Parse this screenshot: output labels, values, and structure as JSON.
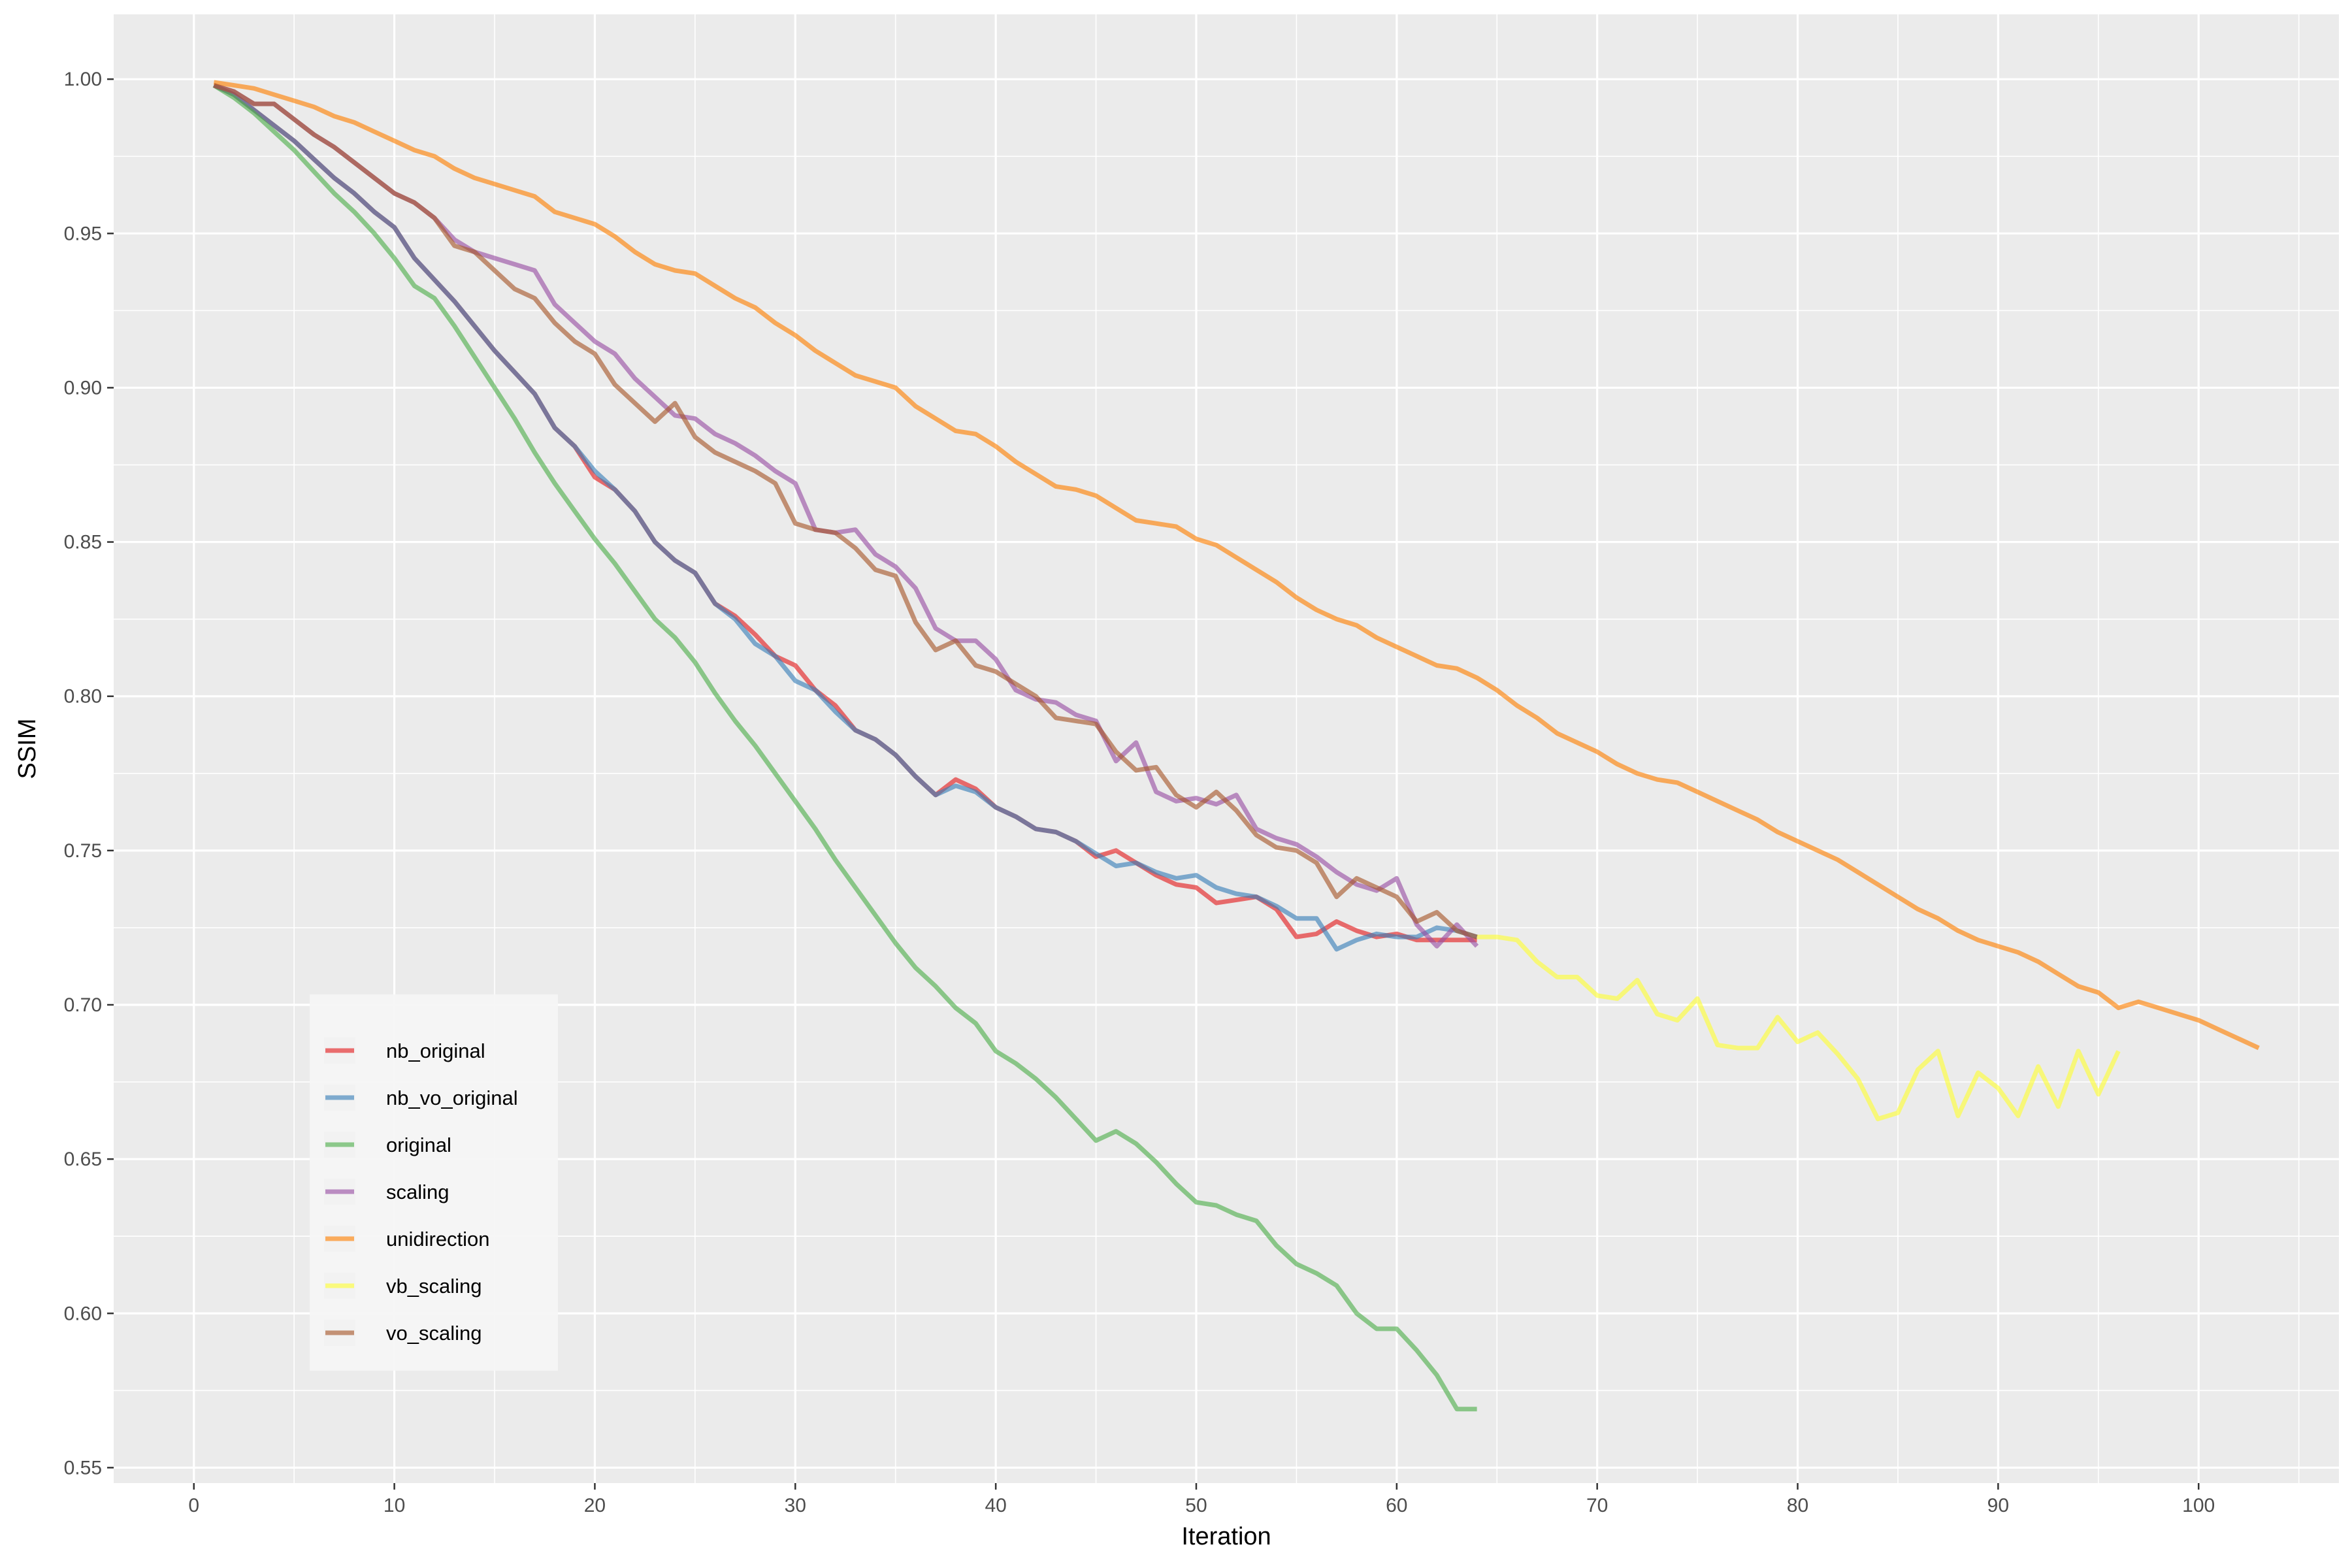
{
  "chart_data": {
    "type": "line",
    "title": "",
    "xlabel": "Iteration",
    "ylabel": "SSIM",
    "xlim": [
      -4,
      107
    ],
    "ylim": [
      0.545,
      1.021
    ],
    "xticks": [
      "0",
      "10",
      "20",
      "30",
      "40",
      "50",
      "60",
      "70",
      "80",
      "90",
      "100"
    ],
    "yticks": [
      "0.55",
      "0.60",
      "0.65",
      "0.70",
      "0.75",
      "0.80",
      "0.85",
      "0.90",
      "0.95",
      "1.00"
    ],
    "grid": true,
    "legend_position": "bottom-left",
    "series": [
      {
        "name": "nb_original",
        "color": "#e41a1c",
        "x": [
          1,
          2,
          3,
          4,
          5,
          6,
          7,
          8,
          9,
          10,
          11,
          12,
          13,
          14,
          15,
          16,
          17,
          18,
          19,
          20,
          21,
          22,
          23,
          24,
          25,
          26,
          27,
          28,
          29,
          30,
          31,
          32,
          33,
          34,
          35,
          36,
          37,
          38,
          39,
          40,
          41,
          42,
          43,
          44,
          45,
          46,
          47,
          48,
          49,
          50,
          51,
          52,
          53,
          54,
          55,
          56,
          57,
          58,
          59,
          60,
          61,
          62,
          63,
          64
        ],
        "y": [
          0.998,
          0.995,
          0.99,
          0.985,
          0.98,
          0.974,
          0.968,
          0.963,
          0.957,
          0.952,
          0.942,
          0.935,
          0.928,
          0.92,
          0.912,
          0.905,
          0.898,
          0.887,
          0.881,
          0.871,
          0.867,
          0.86,
          0.85,
          0.844,
          0.84,
          0.83,
          0.826,
          0.82,
          0.813,
          0.81,
          0.802,
          0.797,
          0.789,
          0.786,
          0.781,
          0.774,
          0.768,
          0.773,
          0.77,
          0.764,
          0.761,
          0.757,
          0.756,
          0.753,
          0.748,
          0.75,
          0.746,
          0.742,
          0.739,
          0.738,
          0.733,
          0.734,
          0.735,
          0.731,
          0.722,
          0.723,
          0.727,
          0.724,
          0.722,
          0.723,
          0.721,
          0.721,
          0.721,
          0.721
        ]
      },
      {
        "name": "nb_vo_original",
        "color": "#377eb8",
        "x": [
          1,
          2,
          3,
          4,
          5,
          6,
          7,
          8,
          9,
          10,
          11,
          12,
          13,
          14,
          15,
          16,
          17,
          18,
          19,
          20,
          21,
          22,
          23,
          24,
          25,
          26,
          27,
          28,
          29,
          30,
          31,
          32,
          33,
          34,
          35,
          36,
          37,
          38,
          39,
          40,
          41,
          42,
          43,
          44,
          45,
          46,
          47,
          48,
          49,
          50,
          51,
          52,
          53,
          54,
          55,
          56,
          57,
          58,
          59,
          60,
          61,
          62,
          63,
          64
        ],
        "y": [
          0.998,
          0.995,
          0.99,
          0.985,
          0.98,
          0.974,
          0.968,
          0.963,
          0.957,
          0.952,
          0.942,
          0.935,
          0.928,
          0.92,
          0.912,
          0.905,
          0.898,
          0.887,
          0.881,
          0.873,
          0.867,
          0.86,
          0.85,
          0.844,
          0.84,
          0.83,
          0.825,
          0.817,
          0.813,
          0.805,
          0.802,
          0.795,
          0.789,
          0.786,
          0.781,
          0.774,
          0.768,
          0.771,
          0.769,
          0.764,
          0.761,
          0.757,
          0.756,
          0.753,
          0.749,
          0.745,
          0.746,
          0.743,
          0.741,
          0.742,
          0.738,
          0.736,
          0.735,
          0.732,
          0.728,
          0.728,
          0.718,
          0.721,
          0.723,
          0.722,
          0.722,
          0.725,
          0.724,
          0.722
        ]
      },
      {
        "name": "original",
        "color": "#4daf4a",
        "x": [
          1,
          2,
          3,
          4,
          5,
          6,
          7,
          8,
          9,
          10,
          11,
          12,
          13,
          14,
          15,
          16,
          17,
          18,
          19,
          20,
          21,
          22,
          23,
          24,
          25,
          26,
          27,
          28,
          29,
          30,
          31,
          32,
          33,
          34,
          35,
          36,
          37,
          38,
          39,
          40,
          41,
          42,
          43,
          44,
          45,
          46,
          47,
          48,
          49,
          50,
          51,
          52,
          53,
          54,
          55,
          56,
          57,
          58,
          59,
          60,
          61,
          62,
          63,
          64
        ],
        "y": [
          0.998,
          0.994,
          0.989,
          0.983,
          0.977,
          0.97,
          0.963,
          0.957,
          0.95,
          0.942,
          0.933,
          0.929,
          0.92,
          0.91,
          0.9,
          0.89,
          0.879,
          0.869,
          0.86,
          0.851,
          0.843,
          0.834,
          0.825,
          0.819,
          0.811,
          0.801,
          0.792,
          0.784,
          0.775,
          0.766,
          0.757,
          0.747,
          0.738,
          0.729,
          0.72,
          0.712,
          0.706,
          0.699,
          0.694,
          0.685,
          0.681,
          0.676,
          0.67,
          0.663,
          0.656,
          0.659,
          0.655,
          0.649,
          0.642,
          0.636,
          0.635,
          0.632,
          0.63,
          0.622,
          0.616,
          0.613,
          0.609,
          0.6,
          0.595,
          0.595,
          0.588,
          0.58,
          0.569,
          0.569
        ]
      },
      {
        "name": "scaling",
        "color": "#984ea3",
        "x": [
          1,
          2,
          3,
          4,
          5,
          6,
          7,
          8,
          9,
          10,
          11,
          12,
          13,
          14,
          15,
          16,
          17,
          18,
          19,
          20,
          21,
          22,
          23,
          24,
          25,
          26,
          27,
          28,
          29,
          30,
          31,
          32,
          33,
          34,
          35,
          36,
          37,
          38,
          39,
          40,
          41,
          42,
          43,
          44,
          45,
          46,
          47,
          48,
          49,
          50,
          51,
          52,
          53,
          54,
          55,
          56,
          57,
          58,
          59,
          60,
          61,
          62,
          63,
          64
        ],
        "y": [
          0.998,
          0.996,
          0.992,
          0.992,
          0.987,
          0.982,
          0.978,
          0.973,
          0.968,
          0.963,
          0.96,
          0.955,
          0.948,
          0.944,
          0.942,
          0.94,
          0.938,
          0.927,
          0.921,
          0.915,
          0.911,
          0.903,
          0.897,
          0.891,
          0.89,
          0.885,
          0.882,
          0.878,
          0.873,
          0.869,
          0.854,
          0.853,
          0.854,
          0.846,
          0.842,
          0.835,
          0.822,
          0.818,
          0.818,
          0.812,
          0.802,
          0.799,
          0.798,
          0.794,
          0.792,
          0.779,
          0.785,
          0.769,
          0.766,
          0.767,
          0.765,
          0.768,
          0.757,
          0.754,
          0.752,
          0.748,
          0.743,
          0.739,
          0.737,
          0.741,
          0.726,
          0.719,
          0.726,
          0.719
        ]
      },
      {
        "name": "unidirection",
        "color": "#ff7f00",
        "x": [
          1,
          2,
          3,
          4,
          5,
          6,
          7,
          8,
          9,
          10,
          11,
          12,
          13,
          14,
          15,
          16,
          17,
          18,
          19,
          20,
          21,
          22,
          23,
          24,
          25,
          26,
          27,
          28,
          29,
          30,
          31,
          32,
          33,
          34,
          35,
          36,
          37,
          38,
          39,
          40,
          41,
          42,
          43,
          44,
          45,
          46,
          47,
          48,
          49,
          50,
          51,
          52,
          53,
          54,
          55,
          56,
          57,
          58,
          59,
          60,
          61,
          62,
          63,
          64,
          65,
          66,
          67,
          68,
          69,
          70,
          71,
          72,
          73,
          74,
          75,
          76,
          77,
          78,
          79,
          80,
          81,
          82,
          83,
          84,
          85,
          86,
          87,
          88,
          89,
          90,
          91,
          92,
          93,
          94,
          95,
          96,
          97,
          98,
          99,
          100,
          101,
          102,
          103
        ],
        "y": [
          0.999,
          0.998,
          0.997,
          0.995,
          0.993,
          0.991,
          0.988,
          0.986,
          0.983,
          0.98,
          0.977,
          0.975,
          0.971,
          0.968,
          0.966,
          0.964,
          0.962,
          0.957,
          0.955,
          0.953,
          0.949,
          0.944,
          0.94,
          0.938,
          0.937,
          0.933,
          0.929,
          0.926,
          0.921,
          0.917,
          0.912,
          0.908,
          0.904,
          0.902,
          0.9,
          0.894,
          0.89,
          0.886,
          0.885,
          0.881,
          0.876,
          0.872,
          0.868,
          0.867,
          0.865,
          0.861,
          0.857,
          0.856,
          0.855,
          0.851,
          0.849,
          0.845,
          0.841,
          0.837,
          0.832,
          0.828,
          0.825,
          0.823,
          0.819,
          0.816,
          0.813,
          0.81,
          0.809,
          0.806,
          0.802,
          0.797,
          0.793,
          0.788,
          0.785,
          0.782,
          0.778,
          0.775,
          0.773,
          0.772,
          0.769,
          0.766,
          0.763,
          0.76,
          0.756,
          0.753,
          0.75,
          0.747,
          0.743,
          0.739,
          0.735,
          0.731,
          0.728,
          0.724,
          0.721,
          0.719,
          0.717,
          0.714,
          0.71,
          0.706,
          0.704,
          0.699,
          0.701,
          0.699,
          0.697,
          0.695,
          0.692,
          0.689,
          0.686
        ]
      },
      {
        "name": "vb_scaling",
        "color": "#ffff33",
        "x": [
          64,
          65,
          66,
          67,
          68,
          69,
          70,
          71,
          72,
          73,
          74,
          75,
          76,
          77,
          78,
          79,
          80,
          81,
          82,
          83,
          84,
          85,
          86,
          87,
          88,
          89,
          90,
          91,
          92,
          93,
          94,
          95,
          96
        ],
        "y": [
          0.722,
          0.722,
          0.721,
          0.714,
          0.709,
          0.709,
          0.703,
          0.702,
          0.708,
          0.697,
          0.695,
          0.702,
          0.687,
          0.686,
          0.686,
          0.696,
          0.688,
          0.691,
          0.684,
          0.676,
          0.663,
          0.665,
          0.679,
          0.685,
          0.664,
          0.678,
          0.673,
          0.664,
          0.68,
          0.667,
          0.685,
          0.671,
          0.685
        ]
      },
      {
        "name": "vo_scaling",
        "color": "#a65628",
        "x": [
          1,
          2,
          3,
          4,
          5,
          6,
          7,
          8,
          9,
          10,
          11,
          12,
          13,
          14,
          15,
          16,
          17,
          18,
          19,
          20,
          21,
          22,
          23,
          24,
          25,
          26,
          27,
          28,
          29,
          30,
          31,
          32,
          33,
          34,
          35,
          36,
          37,
          38,
          39,
          40,
          41,
          42,
          43,
          44,
          45,
          46,
          47,
          48,
          49,
          50,
          51,
          52,
          53,
          54,
          55,
          56,
          57,
          58,
          59,
          60,
          61,
          62,
          63,
          64
        ],
        "y": [
          0.998,
          0.996,
          0.992,
          0.992,
          0.987,
          0.982,
          0.978,
          0.973,
          0.968,
          0.963,
          0.96,
          0.955,
          0.946,
          0.944,
          0.938,
          0.932,
          0.929,
          0.921,
          0.915,
          0.911,
          0.901,
          0.895,
          0.889,
          0.895,
          0.884,
          0.879,
          0.876,
          0.873,
          0.869,
          0.856,
          0.854,
          0.853,
          0.848,
          0.841,
          0.839,
          0.824,
          0.815,
          0.818,
          0.81,
          0.808,
          0.804,
          0.8,
          0.793,
          0.792,
          0.791,
          0.782,
          0.776,
          0.777,
          0.768,
          0.764,
          0.769,
          0.763,
          0.755,
          0.751,
          0.75,
          0.746,
          0.735,
          0.741,
          0.738,
          0.735,
          0.727,
          0.73,
          0.724,
          0.722
        ]
      }
    ]
  }
}
